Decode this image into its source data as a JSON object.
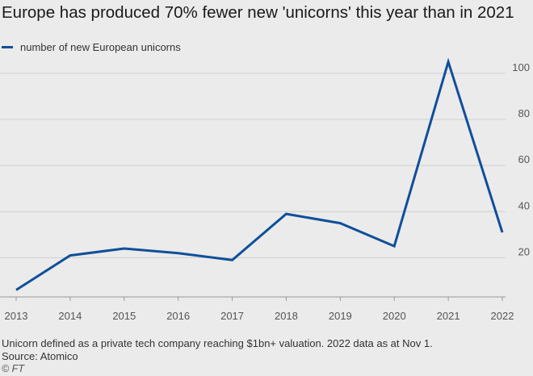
{
  "chart_data": {
    "type": "line",
    "title": "Europe has produced 70% fewer new 'unicorns' this year than in 2021",
    "xlabel": "",
    "ylabel": "",
    "x": [
      2013,
      2014,
      2015,
      2016,
      2017,
      2018,
      2019,
      2020,
      2021,
      2022
    ],
    "xticks": [
      "2013",
      "2014",
      "2015",
      "2016",
      "2017",
      "2018",
      "2019",
      "2020",
      "2021",
      "2022"
    ],
    "yticks": [
      20,
      40,
      60,
      80,
      100
    ],
    "ylim": [
      3,
      108
    ],
    "grid": true,
    "y_axis_position": "right",
    "legend_position": "top-left",
    "series": [
      {
        "name": "number of new European unicorns",
        "color": "#0f4f99",
        "values": [
          6,
          21,
          24,
          22,
          19,
          39,
          35,
          25,
          105,
          31
        ]
      }
    ]
  },
  "footnotes": {
    "note": "Unicorn defined as a private tech company reaching $1bn+ valuation. 2022 data as at Nov 1.",
    "source": "Source: Atomico",
    "credit": "© FT"
  },
  "colors": {
    "background": "#ebebeb",
    "gridline": "#cfcfcf",
    "axis_text": "#555555"
  }
}
